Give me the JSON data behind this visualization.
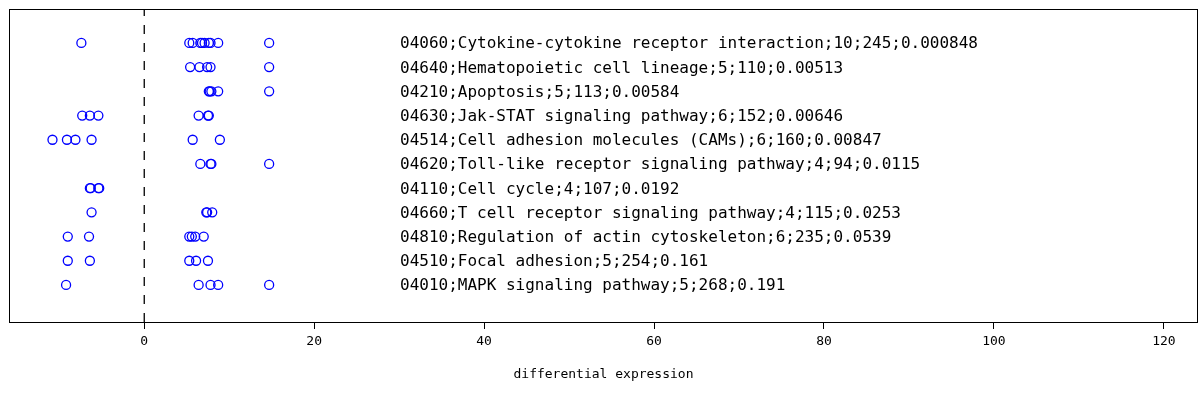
{
  "chart_data": {
    "type": "scatter",
    "orientation": "horizontal",
    "xlabel": "differential expression",
    "categories": [
      "04060;Cytokine-cytokine receptor interaction;10;245;0.000848",
      "04640;Hematopoietic cell lineage;5;110;0.00513",
      "04210;Apoptosis;5;113;0.00584",
      "04630;Jak-STAT signaling pathway;6;152;0.00646",
      "04514;Cell adhesion molecules (CAMs);6;160;0.00847",
      "04620;Toll-like receptor signaling pathway;4;94;0.0115",
      "04110;Cell cycle;4;107;0.0192",
      "04660;T cell receptor signaling pathway;4;115;0.0253",
      "04810;Regulation of actin cytoskeleton;6;235;0.0539",
      "04510;Focal adhesion;5;254;0.161",
      "04010;MAPK signaling pathway;5;268;0.191"
    ],
    "series": [
      {
        "color": "#0000ff",
        "values": [
          -7.4,
          5.4,
          7.6,
          -7.3,
          -10.8,
          6.6,
          -6.4,
          -6.2,
          -9.0,
          -9.0,
          -9.2
        ]
      },
      {
        "color": "#0000ff",
        "values": [
          5.3,
          6.5,
          7.7,
          -6.4,
          -9.1,
          7.8,
          -6.3,
          7.3,
          -6.5,
          -6.4,
          6.4
        ]
      },
      {
        "color": "#0000ff",
        "values": [
          5.7,
          7.4,
          7.9,
          -5.4,
          -8.1,
          7.9,
          -5.4,
          7.4,
          5.3,
          5.3,
          7.8
        ]
      },
      {
        "color": "#0000ff",
        "values": [
          6.6,
          7.8,
          8.7,
          6.4,
          -6.2,
          14.7,
          -5.3,
          8.0,
          5.6,
          6.1,
          8.7
        ]
      },
      {
        "color": "#0000ff",
        "values": [
          6.8,
          14.7,
          14.7,
          7.5,
          5.7,
          null,
          null,
          null,
          6.0,
          7.5,
          14.7
        ]
      },
      {
        "color": "#0000ff",
        "values": [
          7.1,
          null,
          null,
          7.6,
          8.9,
          null,
          null,
          null,
          7.0,
          null,
          null
        ]
      },
      {
        "color": "#0000ff",
        "values": [
          7.6,
          null,
          null,
          null,
          null,
          null,
          null,
          null,
          null,
          null,
          null
        ]
      },
      {
        "color": "#0000ff",
        "values": [
          7.8,
          null,
          null,
          null,
          null,
          null,
          null,
          null,
          null,
          null,
          null
        ]
      },
      {
        "color": "#0000ff",
        "values": [
          8.7,
          null,
          null,
          null,
          null,
          null,
          null,
          null,
          null,
          null,
          null
        ]
      },
      {
        "color": "#0000ff",
        "values": [
          14.7,
          null,
          null,
          null,
          null,
          null,
          null,
          null,
          null,
          null,
          null
        ]
      }
    ],
    "xlim": [
      -15.8,
      123.9
    ],
    "xticks": [
      0,
      20,
      40,
      60,
      80,
      100,
      120
    ],
    "ref_lines": [
      {
        "axis": "x",
        "value": 0,
        "color": "#000000",
        "line_style": "dashed"
      }
    ],
    "marker": "circle"
  }
}
